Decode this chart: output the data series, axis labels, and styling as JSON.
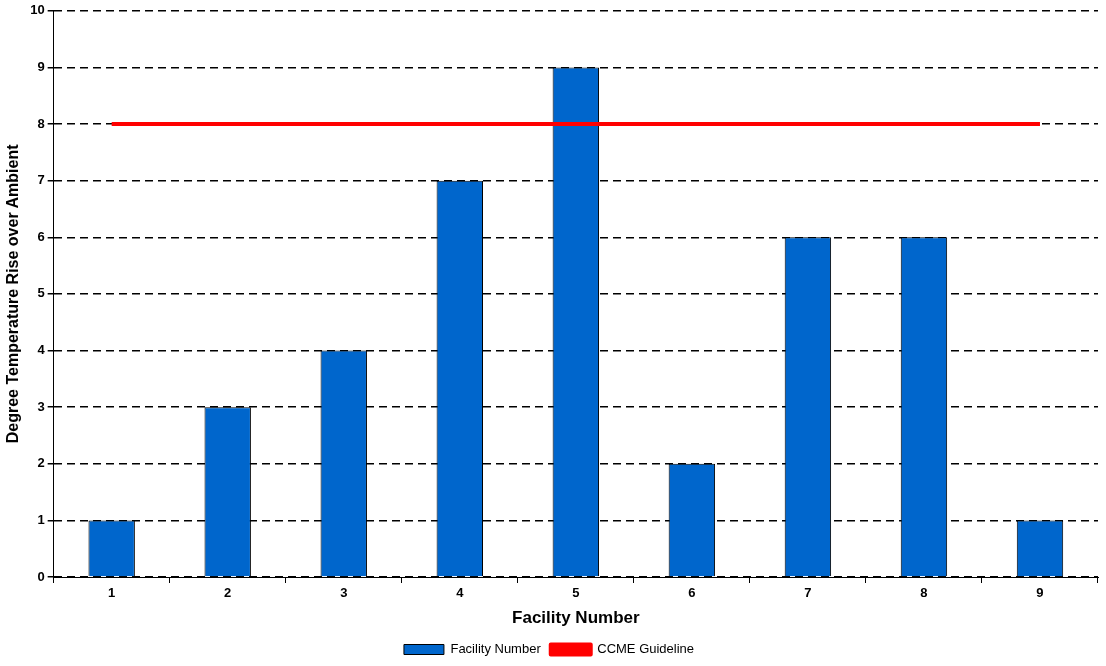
{
  "chart_data": {
    "type": "bar",
    "xlabel": "Facility Number",
    "ylabel": "Degree Temperature Rise over Ambient",
    "categories": [
      "1",
      "2",
      "3",
      "4",
      "5",
      "6",
      "7",
      "8",
      "9"
    ],
    "series": [
      {
        "name": "Facility Number",
        "color": "#0066cc",
        "values": [
          1,
          3,
          4,
          7,
          9,
          2,
          6,
          6,
          1
        ]
      },
      {
        "name": "CCME Guideline",
        "type": "line",
        "color": "#ff0000",
        "values": [
          8,
          8,
          8,
          8,
          8,
          8,
          8,
          8,
          8
        ]
      }
    ],
    "ylim": [
      0,
      10
    ],
    "yticks": [
      0,
      1,
      2,
      3,
      4,
      5,
      6,
      7,
      8,
      9,
      10
    ],
    "grid": "y",
    "legend": "bottom"
  }
}
